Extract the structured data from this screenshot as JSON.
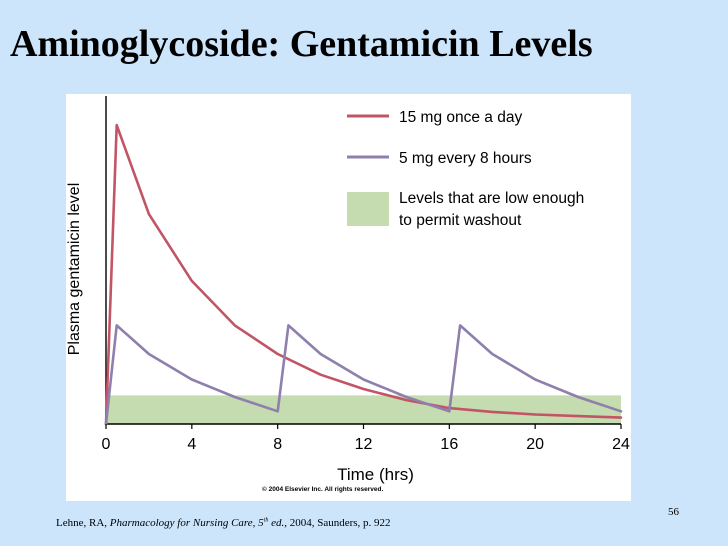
{
  "slide": {
    "title": "Aminoglycoside: Gentamicin Levels",
    "copyright": "© 2004 Elsevier Inc. All rights reserved.",
    "citation": {
      "author": "Lehne, RA, ",
      "book": "Pharmacology for Nursing Care, 5",
      "edition_sup": "th",
      "edition_tail": " ed.,",
      "rest": " 2004, Saunders, p. 922"
    },
    "page_number": "56"
  },
  "colors": {
    "background": "#cce5fb",
    "once_daily": "#c25565",
    "every_8h": "#8e7fad",
    "washout": "#c5dbb0"
  },
  "chart_data": {
    "type": "line",
    "xlabel": "Time (hrs)",
    "ylabel": "Plasma gentamicin level",
    "xlim": [
      0,
      24
    ],
    "ylim": [
      0,
      100
    ],
    "x_ticks": [
      0,
      4,
      8,
      12,
      16,
      20,
      24
    ],
    "washout_band": {
      "label": "Levels that are low enough to permit washout",
      "y_range": [
        0,
        9
      ]
    },
    "legend": [
      {
        "key": "once_daily",
        "label": "15 mg once a day"
      },
      {
        "key": "every_8h",
        "label": "5 mg every 8 hours"
      },
      {
        "key": "washout",
        "label": "Levels that are low enough",
        "label2": "to permit washout"
      }
    ],
    "series": [
      {
        "name": "15 mg once a day",
        "key": "once_daily",
        "points": [
          [
            0,
            0
          ],
          [
            0.5,
            94
          ],
          [
            2,
            66
          ],
          [
            4,
            45
          ],
          [
            6,
            31
          ],
          [
            8,
            22
          ],
          [
            10,
            15.5
          ],
          [
            12,
            11
          ],
          [
            14,
            7.5
          ],
          [
            16,
            5
          ],
          [
            18,
            3.8
          ],
          [
            20,
            3
          ],
          [
            22,
            2.5
          ],
          [
            24,
            2
          ]
        ]
      },
      {
        "name": "5 mg every 8 hours",
        "key": "every_8h",
        "points": [
          [
            0,
            0
          ],
          [
            0.5,
            31
          ],
          [
            2,
            22
          ],
          [
            4,
            14
          ],
          [
            6,
            8.5
          ],
          [
            8,
            4
          ],
          [
            8.5,
            31
          ],
          [
            10,
            22
          ],
          [
            12,
            14
          ],
          [
            14,
            8.5
          ],
          [
            16,
            4
          ],
          [
            16.5,
            31
          ],
          [
            18,
            22
          ],
          [
            20,
            14
          ],
          [
            22,
            8.5
          ],
          [
            24,
            4
          ]
        ]
      }
    ]
  }
}
